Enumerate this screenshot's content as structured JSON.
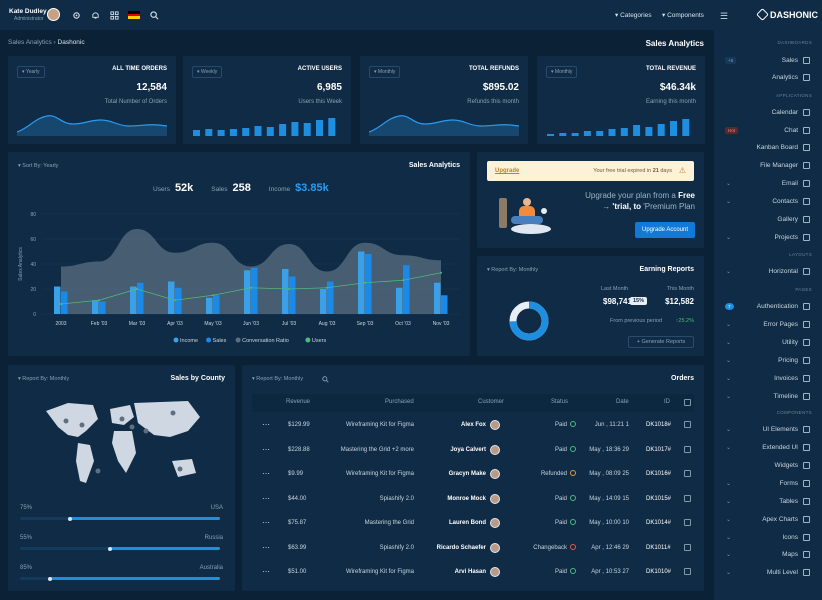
{
  "topbar": {
    "user_name": "Kate Dudley",
    "user_role": "Administrator",
    "nav_categories": "Categories",
    "nav_components": "Components"
  },
  "breadcrumb": {
    "root": "Sales Analytics",
    "current": "Dashonic"
  },
  "page_title": "Sales Analytics",
  "brand": "DASHONIC",
  "stats": [
    {
      "filter": "Yearly",
      "title": "ALL TIME ORDERS",
      "value": "12,584",
      "sub": "Total Number of Orders"
    },
    {
      "filter": "Weekly",
      "title": "ACTIVE USERS",
      "value": "6,985",
      "sub": "Users this Week"
    },
    {
      "filter": "Monthly",
      "title": "TOTAL REFUNDS",
      "value": "$895.02",
      "sub": "Refunds this month"
    },
    {
      "filter": "Monthly",
      "title": "TOTAL REVENUE",
      "value": "$46.34k",
      "sub": "Earning this month"
    }
  ],
  "sales_analytics": {
    "sort_label": "Sort By: Yearly",
    "title": "Sales Analytics",
    "users_label": "Users",
    "users_value": "52k",
    "sales_label": "Sales",
    "sales_value": "258",
    "income_label": "Income",
    "income_value": "$3.85k"
  },
  "chart_data": {
    "type": "bar",
    "categories": [
      "2003",
      "Feb '03",
      "Mar '03",
      "Apr '03",
      "May '03",
      "Jun '03",
      "Jul '03",
      "Aug '03",
      "Sep '03",
      "Oct '03",
      "Nov '03"
    ],
    "ylabel": "Sales Analytics",
    "ylim": [
      0,
      80
    ],
    "yticks": [
      0,
      20,
      40,
      60,
      80
    ],
    "series": [
      {
        "name": "Income",
        "type": "bar",
        "color": "#3aa0e8",
        "values": [
          22,
          11,
          22,
          26,
          13,
          35,
          36,
          20,
          50,
          21,
          25
        ]
      },
      {
        "name": "Sales",
        "type": "bar",
        "color": "#1a8ae6",
        "values": [
          18,
          10,
          25,
          21,
          15,
          37,
          30,
          26,
          48,
          39,
          15
        ]
      },
      {
        "name": "Conversation Ratio",
        "type": "area",
        "color": "#5a6f82",
        "values": [
          38,
          42,
          68,
          49,
          57,
          38,
          56,
          34,
          57,
          47,
          43
        ]
      },
      {
        "name": "Users",
        "type": "line",
        "color": "#4cbb7a",
        "values": [
          8,
          11,
          20,
          11,
          15,
          21,
          20,
          21,
          25,
          27,
          33
        ]
      }
    ],
    "legend_position": "bottom",
    "grid": true
  },
  "upgrade": {
    "link": "Upgrade",
    "notice_pre": "Your free trial expired in",
    "notice_days": "21",
    "notice_post": "days",
    "line1": "Upgrade your plan from a",
    "line1_b": "Free",
    "line2_pre": "'trial, to",
    "line2_b": "'Premium Plan",
    "button": "Upgrade Account"
  },
  "earning": {
    "report_label": "Report By: Monthly",
    "title": "Earning Reports",
    "last_label": "Last Month",
    "last_value": "$98,741",
    "this_label": "This Month",
    "this_badge": "15%",
    "this_value": "$12,582",
    "prev_label": "From previous period",
    "prev_change": "25.2%",
    "button": "Generate Reports"
  },
  "county": {
    "report_label": "Report By: Monthly",
    "title": "Sales by County",
    "rows": [
      {
        "pct_label": "75%",
        "country": "USA",
        "value": 0.25
      },
      {
        "pct_label": "55%",
        "country": "Russia",
        "value": 0.45
      },
      {
        "pct_label": "85%",
        "country": "Australia",
        "value": 0.15
      }
    ]
  },
  "orders": {
    "report_label": "Report By: Monthly",
    "title": "Orders",
    "headers": [
      "Revenue",
      "Purchased",
      "Customer",
      "Status",
      "Date",
      "ID"
    ],
    "rows": [
      {
        "revenue": "$129.99",
        "purchased": "Wireframing Kit for Figma",
        "customer": "Alex Fox",
        "status": "Paid",
        "date": "Jun , 11:21 1",
        "id": "DK1018#"
      },
      {
        "revenue": "$228.88",
        "purchased": "Mastering the Grid +2 more",
        "customer": "Joya Calvert",
        "status": "Paid",
        "date": "May , 18:36 29",
        "id": "DK1017#"
      },
      {
        "revenue": "$9.99",
        "purchased": "Wireframing Kit for Figma",
        "customer": "Gracyn Make",
        "status": "Refunded",
        "date": "May , 08:09 25",
        "id": "DK1016#"
      },
      {
        "revenue": "$44.00",
        "purchased": "Spiashify 2.0",
        "customer": "Monroe Mock",
        "status": "Paid",
        "date": "May , 14:09 15",
        "id": "DK1015#"
      },
      {
        "revenue": "$75.87",
        "purchased": "Mastering the Grid",
        "customer": "Lauren Bond",
        "status": "Paid",
        "date": "May , 10:00 10",
        "id": "DK1014#"
      },
      {
        "revenue": "$63.99",
        "purchased": "Spiashify 2.0",
        "customer": "Ricardo Schaefer",
        "status": "Changeback",
        "date": "Apr , 12:46 29",
        "id": "DK1011#"
      },
      {
        "revenue": "$51.00",
        "purchased": "Wireframing Kit for Figma",
        "customer": "Arvi Hasan",
        "status": "Paid",
        "date": "Apr , 10:53 27",
        "id": "DK1010#"
      }
    ]
  },
  "sidebar": {
    "sections": [
      "DASHBOARDS",
      "APPLICATIONS",
      "LAYOUTS",
      "PAGES",
      "COMPONENTS"
    ],
    "badge_sales": "+5",
    "badge_chat": "Hot",
    "badge_auth": "7",
    "items": [
      "Sales",
      "Analytics",
      "Calendar",
      "Chat",
      "Kanban Board",
      "File Manager",
      "Email",
      "Contacts",
      "Gallery",
      "Projects",
      "Horizontal",
      "Authentication",
      "Error Pages",
      "Utility",
      "Pricing",
      "Invoices",
      "Timeline",
      "UI Elements",
      "Extended UI",
      "Widgets",
      "Forms",
      "Tables",
      "Apex Charts",
      "Icons",
      "Maps",
      "Multi Level"
    ]
  }
}
